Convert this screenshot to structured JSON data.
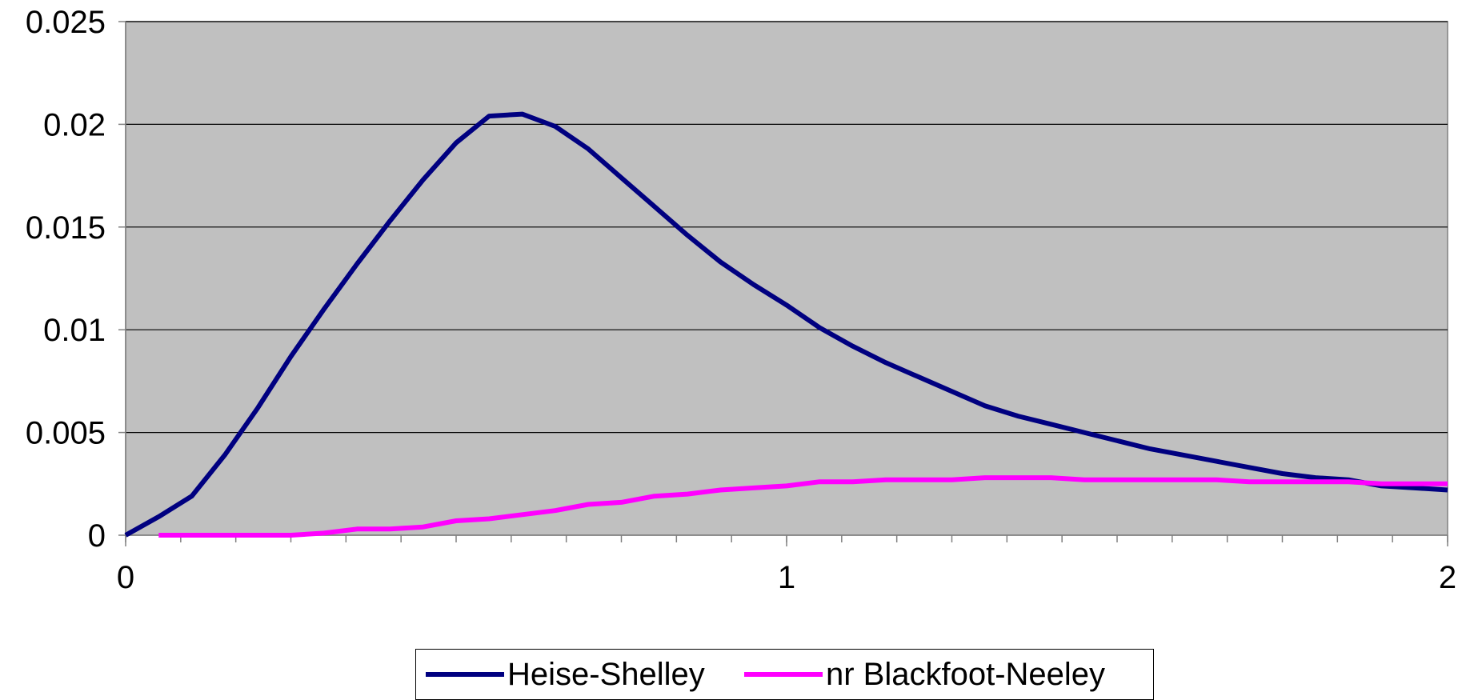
{
  "chart_data": {
    "type": "line",
    "title": "",
    "xlabel": "",
    "ylabel": "",
    "xlim": [
      0,
      2
    ],
    "ylim": [
      0,
      0.025
    ],
    "x_ticks": [
      0,
      1,
      2
    ],
    "x_tick_labels": [
      "0",
      "1",
      "2"
    ],
    "x_minor_tick_step": 0.083333,
    "y_ticks": [
      0,
      0.005,
      0.01,
      0.015,
      0.02,
      0.025
    ],
    "y_tick_labels": [
      "0",
      "0.005",
      "0.01",
      "0.015",
      "0.02",
      "0.025"
    ],
    "grid": "horizontal",
    "plot_background": "#C0C0C0",
    "legend": "bottom",
    "series": [
      {
        "name": "Heise-Shelley",
        "color": "#000080",
        "x": [
          0,
          0.05,
          0.1,
          0.15,
          0.2,
          0.25,
          0.3,
          0.35,
          0.4,
          0.45,
          0.5,
          0.55,
          0.6,
          0.65,
          0.7,
          0.75,
          0.8,
          0.85,
          0.9,
          0.95,
          1.0,
          1.05,
          1.1,
          1.15,
          1.2,
          1.25,
          1.3,
          1.35,
          1.4,
          1.45,
          1.5,
          1.55,
          1.6,
          1.65,
          1.7,
          1.75,
          1.8,
          1.85,
          1.9,
          1.95,
          2.0
        ],
        "y": [
          0,
          0.0009,
          0.0019,
          0.0039,
          0.0062,
          0.0087,
          0.011,
          0.0132,
          0.0153,
          0.0173,
          0.0191,
          0.0204,
          0.0205,
          0.0199,
          0.0188,
          0.0174,
          0.016,
          0.0146,
          0.0133,
          0.0122,
          0.0112,
          0.0101,
          0.0092,
          0.0084,
          0.0077,
          0.007,
          0.0063,
          0.0058,
          0.0054,
          0.005,
          0.0046,
          0.0042,
          0.0039,
          0.0036,
          0.0033,
          0.003,
          0.0028,
          0.0027,
          0.0024,
          0.0023,
          0.0022
        ]
      },
      {
        "name": "nr Blackfoot-Neeley",
        "color": "#FF00FF",
        "x": [
          0.05,
          0.1,
          0.15,
          0.2,
          0.25,
          0.3,
          0.35,
          0.4,
          0.45,
          0.5,
          0.55,
          0.6,
          0.65,
          0.7,
          0.75,
          0.8,
          0.85,
          0.9,
          0.95,
          1.0,
          1.05,
          1.1,
          1.15,
          1.2,
          1.25,
          1.3,
          1.35,
          1.4,
          1.45,
          1.5,
          1.55,
          1.6,
          1.65,
          1.7,
          1.75,
          1.8,
          1.85,
          1.9,
          1.95,
          2.0
        ],
        "y": [
          0,
          0,
          0,
          0,
          0,
          0.0001,
          0.0003,
          0.0003,
          0.0004,
          0.0007,
          0.0008,
          0.001,
          0.0012,
          0.0015,
          0.0016,
          0.0019,
          0.002,
          0.0022,
          0.0023,
          0.0024,
          0.0026,
          0.0026,
          0.0027,
          0.0027,
          0.0027,
          0.0028,
          0.0028,
          0.0028,
          0.0027,
          0.0027,
          0.0027,
          0.0027,
          0.0027,
          0.0026,
          0.0026,
          0.0026,
          0.0026,
          0.0025,
          0.0025,
          0.0025
        ]
      }
    ]
  }
}
